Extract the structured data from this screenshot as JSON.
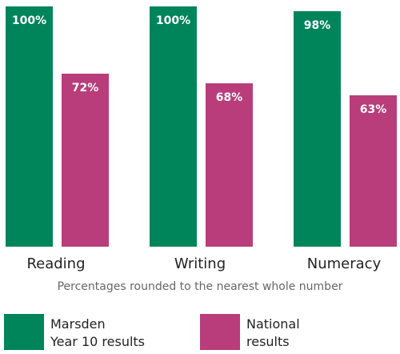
{
  "chart_data": {
    "type": "bar",
    "categories": [
      "Reading",
      "Writing",
      "Numeracy"
    ],
    "series": [
      {
        "name": "Marsden\nYear 10 results",
        "color": "#00845a",
        "values": [
          100,
          100,
          98
        ],
        "value_labels": [
          "100%",
          "100%",
          "98%"
        ]
      },
      {
        "name": "National\nresults",
        "color": "#b83d7a",
        "values": [
          72,
          68,
          63
        ],
        "value_labels": [
          "72%",
          "68%",
          "63%"
        ]
      }
    ],
    "ylim": [
      0,
      100
    ],
    "note": "Percentages rounded to the nearest whole number"
  }
}
